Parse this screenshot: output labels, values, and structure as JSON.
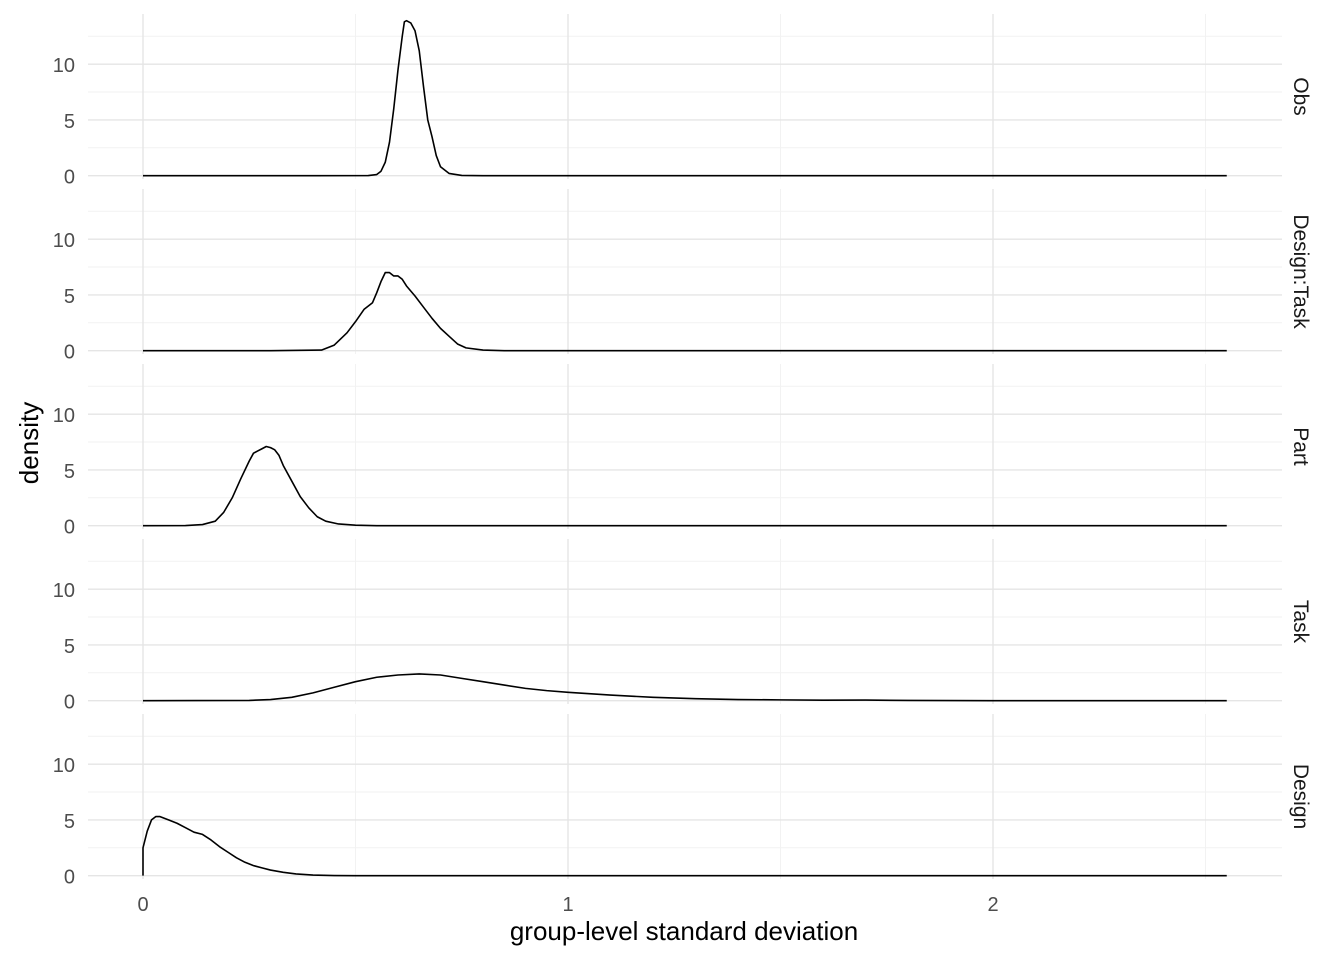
{
  "chart_data": {
    "type": "area",
    "xlabel": "group-level standard deviation",
    "ylabel": "density",
    "xlim": [
      -0.13,
      2.6
    ],
    "ylim": [
      -0.3,
      14.5
    ],
    "x_ticks": [
      0,
      1,
      2
    ],
    "x_tick_labels": [
      "0",
      "1",
      "2"
    ],
    "y_ticks": [
      0,
      5,
      10
    ],
    "y_tick_labels": [
      "0",
      "5",
      "10"
    ],
    "grid": true,
    "facets": [
      {
        "label": "Obs",
        "points": [
          [
            0,
            0
          ],
          [
            0.4,
            0
          ],
          [
            0.53,
            0.01
          ],
          [
            0.55,
            0.1
          ],
          [
            0.56,
            0.4
          ],
          [
            0.57,
            1.2
          ],
          [
            0.58,
            3.0
          ],
          [
            0.59,
            6.0
          ],
          [
            0.6,
            9.5
          ],
          [
            0.61,
            12.5
          ],
          [
            0.615,
            13.8
          ],
          [
            0.62,
            13.9
          ],
          [
            0.63,
            13.7
          ],
          [
            0.64,
            13.0
          ],
          [
            0.65,
            11.2
          ],
          [
            0.66,
            8.0
          ],
          [
            0.67,
            5.0
          ],
          [
            0.68,
            3.5
          ],
          [
            0.69,
            1.8
          ],
          [
            0.7,
            0.8
          ],
          [
            0.72,
            0.2
          ],
          [
            0.75,
            0.02
          ],
          [
            0.8,
            0
          ],
          [
            1.5,
            0
          ],
          [
            2.55,
            0
          ]
        ]
      },
      {
        "label": "Design:Task",
        "points": [
          [
            0,
            0
          ],
          [
            0.3,
            0
          ],
          [
            0.42,
            0.05
          ],
          [
            0.45,
            0.5
          ],
          [
            0.48,
            1.6
          ],
          [
            0.5,
            2.6
          ],
          [
            0.52,
            3.7
          ],
          [
            0.54,
            4.3
          ],
          [
            0.55,
            5.2
          ],
          [
            0.56,
            6.2
          ],
          [
            0.57,
            7.0
          ],
          [
            0.58,
            7.0
          ],
          [
            0.59,
            6.7
          ],
          [
            0.6,
            6.7
          ],
          [
            0.61,
            6.4
          ],
          [
            0.62,
            5.8
          ],
          [
            0.64,
            4.9
          ],
          [
            0.66,
            3.9
          ],
          [
            0.68,
            2.9
          ],
          [
            0.7,
            2.0
          ],
          [
            0.72,
            1.3
          ],
          [
            0.74,
            0.6
          ],
          [
            0.76,
            0.25
          ],
          [
            0.8,
            0.05
          ],
          [
            0.85,
            0
          ],
          [
            1.5,
            0
          ],
          [
            2.55,
            0
          ]
        ]
      },
      {
        "label": "Part",
        "points": [
          [
            0,
            0
          ],
          [
            0.1,
            0.01
          ],
          [
            0.14,
            0.1
          ],
          [
            0.17,
            0.4
          ],
          [
            0.19,
            1.2
          ],
          [
            0.21,
            2.5
          ],
          [
            0.23,
            4.2
          ],
          [
            0.25,
            5.8
          ],
          [
            0.26,
            6.5
          ],
          [
            0.27,
            6.7
          ],
          [
            0.28,
            6.9
          ],
          [
            0.29,
            7.1
          ],
          [
            0.3,
            7.0
          ],
          [
            0.31,
            6.8
          ],
          [
            0.32,
            6.3
          ],
          [
            0.33,
            5.4
          ],
          [
            0.35,
            4.0
          ],
          [
            0.37,
            2.6
          ],
          [
            0.39,
            1.6
          ],
          [
            0.41,
            0.8
          ],
          [
            0.43,
            0.4
          ],
          [
            0.46,
            0.15
          ],
          [
            0.5,
            0.04
          ],
          [
            0.55,
            0
          ],
          [
            1.5,
            0
          ],
          [
            2.55,
            0
          ]
        ]
      },
      {
        "label": "Task",
        "points": [
          [
            0,
            0
          ],
          [
            0.25,
            0.02
          ],
          [
            0.3,
            0.1
          ],
          [
            0.35,
            0.3
          ],
          [
            0.4,
            0.7
          ],
          [
            0.45,
            1.2
          ],
          [
            0.5,
            1.7
          ],
          [
            0.55,
            2.1
          ],
          [
            0.6,
            2.3
          ],
          [
            0.65,
            2.4
          ],
          [
            0.7,
            2.3
          ],
          [
            0.75,
            2.0
          ],
          [
            0.8,
            1.7
          ],
          [
            0.85,
            1.4
          ],
          [
            0.9,
            1.1
          ],
          [
            0.95,
            0.9
          ],
          [
            1.0,
            0.75
          ],
          [
            1.1,
            0.5
          ],
          [
            1.2,
            0.3
          ],
          [
            1.3,
            0.18
          ],
          [
            1.4,
            0.1
          ],
          [
            1.5,
            0.07
          ],
          [
            1.6,
            0.04
          ],
          [
            1.7,
            0.05
          ],
          [
            1.8,
            0.02
          ],
          [
            2.0,
            0
          ],
          [
            2.55,
            0
          ]
        ]
      },
      {
        "label": "Design",
        "points": [
          [
            0,
            0
          ],
          [
            0,
            2.5
          ],
          [
            0.01,
            4.0
          ],
          [
            0.02,
            5.0
          ],
          [
            0.03,
            5.3
          ],
          [
            0.04,
            5.3
          ],
          [
            0.06,
            5.0
          ],
          [
            0.08,
            4.7
          ],
          [
            0.1,
            4.3
          ],
          [
            0.12,
            3.9
          ],
          [
            0.14,
            3.7
          ],
          [
            0.16,
            3.2
          ],
          [
            0.18,
            2.6
          ],
          [
            0.2,
            2.1
          ],
          [
            0.22,
            1.6
          ],
          [
            0.24,
            1.2
          ],
          [
            0.26,
            0.9
          ],
          [
            0.28,
            0.7
          ],
          [
            0.3,
            0.5
          ],
          [
            0.33,
            0.3
          ],
          [
            0.36,
            0.15
          ],
          [
            0.4,
            0.05
          ],
          [
            0.45,
            0.01
          ],
          [
            0.5,
            0
          ],
          [
            1.5,
            0
          ],
          [
            2.55,
            0
          ]
        ]
      }
    ]
  }
}
